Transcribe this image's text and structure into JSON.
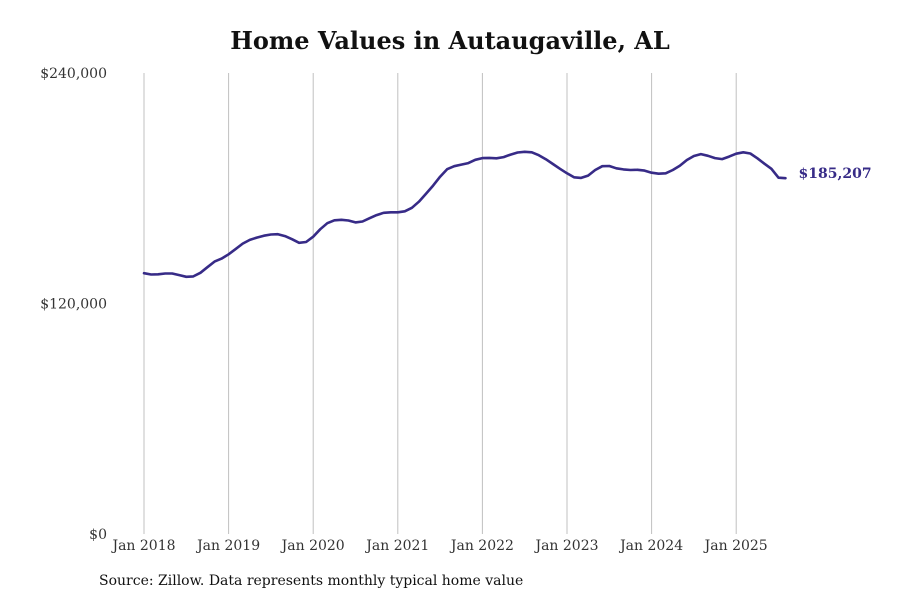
{
  "chart_data": {
    "type": "line",
    "title": "Home Values in Autaugaville, AL",
    "xlabel": "",
    "ylabel": "",
    "ylim": [
      0,
      240000
    ],
    "y_ticks": [
      {
        "value": 0,
        "label": "$0"
      },
      {
        "value": 120000,
        "label": "$120,000"
      },
      {
        "value": 240000,
        "label": "$240,000"
      }
    ],
    "x_ticks": [
      "Jan 2018",
      "Jan 2019",
      "Jan 2020",
      "Jan 2021",
      "Jan 2022",
      "Jan 2023",
      "Jan 2024",
      "Jan 2025"
    ],
    "vertical_grid": true,
    "horizontal_grid": false,
    "line_color": "#372b87",
    "grid_color": "#c0c0c0",
    "end_label": "$185,207",
    "x_start": "Jan 2018",
    "series": [
      {
        "values": [
          135800,
          135100,
          135200,
          135600,
          135600,
          134800,
          133900,
          134100,
          136000,
          138900,
          141800,
          143400,
          145600,
          148300,
          151200,
          153100,
          154300,
          155300,
          155900,
          156100,
          155100,
          153500,
          151600,
          152000,
          154800,
          158700,
          161800,
          163300,
          163600,
          163200,
          162200,
          162700,
          164400,
          166000,
          167200,
          167500,
          167500,
          168000,
          169800,
          173000,
          177100,
          181400,
          186000,
          189900,
          191500,
          192300,
          193100,
          194800,
          195700,
          195800,
          195600,
          196200,
          197500,
          198600,
          199000,
          198700,
          197200,
          195100,
          192600,
          190100,
          187800,
          185700,
          185400,
          186600,
          189500,
          191500,
          191600,
          190400,
          189800,
          189500,
          189600,
          189200,
          188100,
          187600,
          187800,
          189500,
          191700,
          194700,
          196800,
          197800,
          196900,
          195700,
          195200,
          196500,
          198000,
          198700,
          198100,
          195600,
          192800,
          190100,
          185500,
          185207
        ]
      }
    ]
  },
  "footer": {
    "source": "Source: Zillow. Data represents monthly typical home value"
  }
}
